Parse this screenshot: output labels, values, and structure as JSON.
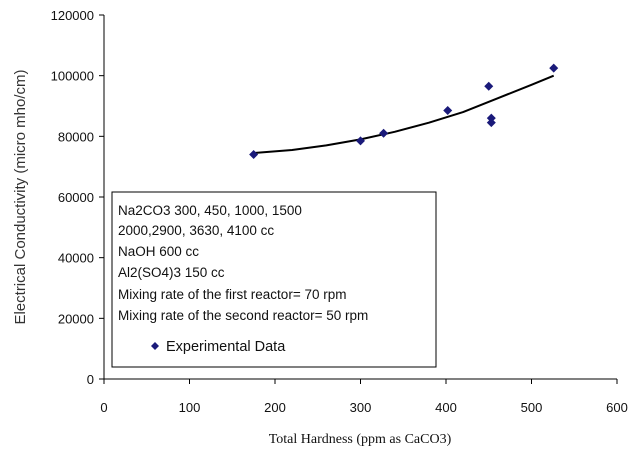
{
  "chart_data": {
    "type": "scatter",
    "title": "",
    "xlabel": "Total Hardness (ppm as CaCO3)",
    "ylabel": "Electrical Conductivity (micro mho/cm)",
    "xlim": [
      0,
      600
    ],
    "ylim": [
      0,
      120000
    ],
    "x_ticks": [
      "0",
      "100",
      "200",
      "300",
      "400",
      "500",
      "600"
    ],
    "y_ticks": [
      "0",
      "20000",
      "40000",
      "60000",
      "80000",
      "100000",
      "120000"
    ],
    "grid": false,
    "marker_color": "#1a1a7a",
    "line_color": "#000000",
    "series": [
      {
        "name": "Experimental Data",
        "points": [
          {
            "x": 175,
            "y": 74000
          },
          {
            "x": 300,
            "y": 78500
          },
          {
            "x": 327,
            "y": 81000
          },
          {
            "x": 402,
            "y": 88500
          },
          {
            "x": 450,
            "y": 96500
          },
          {
            "x": 453,
            "y": 86000
          },
          {
            "x": 453,
            "y": 84500
          },
          {
            "x": 526,
            "y": 102500
          }
        ]
      },
      {
        "points": [
          {
            "x": 175,
            "y": 74500
          },
          {
            "x": 220,
            "y": 75500
          },
          {
            "x": 260,
            "y": 77000
          },
          {
            "x": 300,
            "y": 79000
          },
          {
            "x": 340,
            "y": 81500
          },
          {
            "x": 380,
            "y": 84500
          },
          {
            "x": 420,
            "y": 88000
          },
          {
            "x": 460,
            "y": 92500
          },
          {
            "x": 500,
            "y": 97000
          },
          {
            "x": 526,
            "y": 100000
          }
        ]
      }
    ],
    "annotation_lines": [
      "Na2CO3  300, 450, 1000, 1500",
      "2000,2900, 3630, 4100 cc",
      "NaOH 600 cc",
      "Al2(SO4)3 150 cc",
      "Mixing rate of the first reactor= 70 rpm",
      "Mixing rate of the second reactor= 50 rpm"
    ],
    "legend": {
      "placement": "inside-box",
      "label": "Experimental Data"
    }
  }
}
